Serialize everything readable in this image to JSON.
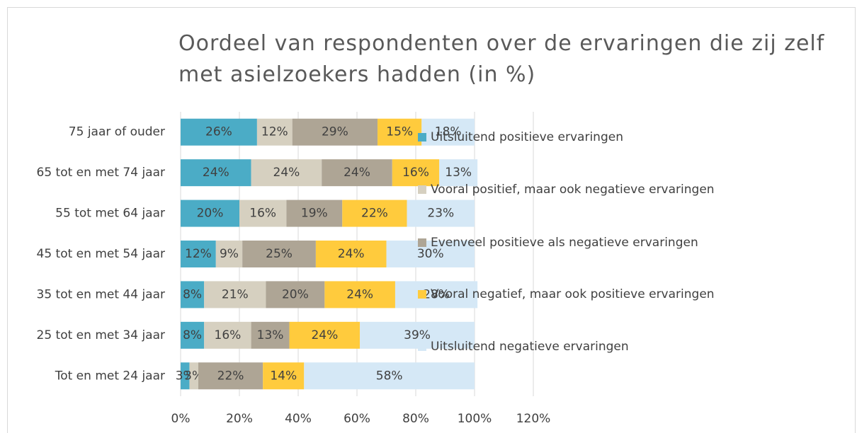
{
  "chart_data": {
    "type": "stacked_bar_horizontal",
    "title": "Oordeel van respondenten over de ervaringen die zij zelf met asielzoekers hadden (in %)",
    "categories": [
      "75 jaar of ouder",
      "65 tot en met 74 jaar",
      "55 tot met 64 jaar",
      "45 tot en met 54 jaar",
      "35 tot en met 44 jaar",
      "25 tot en met 34 jaar",
      "Tot en met 24 jaar"
    ],
    "series": [
      {
        "name": "Uitsluitend positieve ervaringen",
        "color": "#4bacc6",
        "values": [
          26,
          24,
          20,
          12,
          8,
          8,
          3
        ],
        "value_labels": [
          "26%",
          "24%",
          "20%",
          "12%",
          "8%",
          "8%",
          "3%"
        ]
      },
      {
        "name": "Vooral positief, maar ook negatieve ervaringen",
        "color": "#d6d0c0",
        "values": [
          12,
          24,
          16,
          9,
          21,
          16,
          3
        ],
        "value_labels": [
          "12%",
          "24%",
          "16%",
          "9%",
          "21%",
          "16%",
          "3%"
        ]
      },
      {
        "name": "Evenveel positieve als negatieve ervaringen",
        "color": "#aea595",
        "values": [
          29,
          24,
          19,
          25,
          20,
          13,
          22
        ],
        "value_labels": [
          "29%",
          "24%",
          "19%",
          "25%",
          "20%",
          "13%",
          "22%"
        ]
      },
      {
        "name": "Vooral negatief, maar ook positieve ervaringen",
        "color": "#ffcb3d",
        "values": [
          15,
          16,
          22,
          24,
          24,
          24,
          14
        ],
        "value_labels": [
          "15%",
          "16%",
          "22%",
          "24%",
          "24%",
          "24%",
          "14%"
        ]
      },
      {
        "name": "Uitsluitend negatieve ervaringen",
        "color": "#d5e8f6",
        "values": [
          18,
          13,
          23,
          30,
          28,
          39,
          58
        ],
        "value_labels": [
          "18%",
          "13%",
          "23%",
          "30%",
          "28%",
          "39%",
          "58%"
        ]
      }
    ],
    "xlim": [
      0,
      120
    ],
    "xticks": [
      {
        "value": 0,
        "label": "0%"
      },
      {
        "value": 20,
        "label": "20%"
      },
      {
        "value": 40,
        "label": "40%"
      },
      {
        "value": 60,
        "label": "60%"
      },
      {
        "value": 80,
        "label": "80%"
      },
      {
        "value": 100,
        "label": "100%"
      },
      {
        "value": 120,
        "label": "120%"
      }
    ],
    "grid": true,
    "legend": "right"
  }
}
